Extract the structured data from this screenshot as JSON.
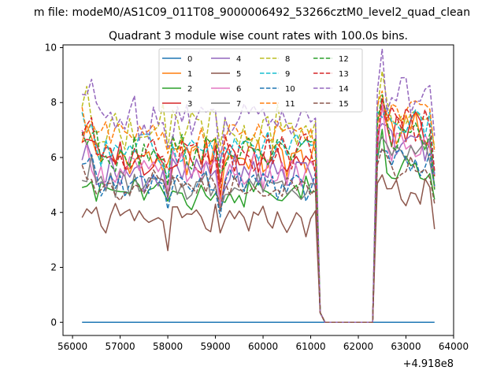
{
  "chart_data": {
    "type": "line",
    "suptitle": "m file: modeM0/AS1C09_011T08_9000006492_53266cztM0_level2_quad_clean",
    "title": "Quadrant 3 module wise count rates with 100.0s bins.",
    "xlabel": "",
    "ylabel": "",
    "x_offset_label": "+4.918e8",
    "xlim": [
      55800,
      64000
    ],
    "ylim": [
      -0.48,
      10.1
    ],
    "x_ticks": [
      56000,
      57000,
      58000,
      59000,
      60000,
      61000,
      62000,
      63000,
      64000
    ],
    "y_ticks": [
      0,
      2,
      4,
      6,
      8,
      10
    ],
    "grid": false,
    "legend": {
      "position": "top-center",
      "ncols": 4
    },
    "segments": [
      {
        "x_start": 56200,
        "x_end": 61100,
        "step": 100
      },
      {
        "x_start": 62300,
        "x_end": 63600,
        "step": 100
      }
    ],
    "zero_span": {
      "x_start": 61300,
      "x_end": 62300
    },
    "transition_points": [
      [
        61200,
        0.35
      ]
    ],
    "series": [
      {
        "name": "0",
        "color": "#1f77b4",
        "dashed": false,
        "level1": 0.0,
        "level2": 0.0,
        "amp": 0.0
      },
      {
        "name": "1",
        "color": "#ff7f0e",
        "dashed": false,
        "level1": 6.0,
        "level2": 7.0,
        "amp": 0.6
      },
      {
        "name": "2",
        "color": "#2ca02c",
        "dashed": false,
        "level1": 4.7,
        "level2": 5.6,
        "amp": 0.5
      },
      {
        "name": "3",
        "color": "#d62728",
        "dashed": false,
        "level1": 6.0,
        "level2": 7.0,
        "amp": 0.6
      },
      {
        "name": "4",
        "color": "#9467bd",
        "dashed": false,
        "level1": 5.4,
        "level2": 6.6,
        "amp": 0.6
      },
      {
        "name": "5",
        "color": "#8c564b",
        "dashed": false,
        "level1": 3.7,
        "level2": 4.6,
        "amp": 0.5
      },
      {
        "name": "6",
        "color": "#e377c2",
        "dashed": false,
        "level1": 5.5,
        "level2": 6.5,
        "amp": 0.6
      },
      {
        "name": "7",
        "color": "#7f7f7f",
        "dashed": false,
        "level1": 5.0,
        "level2": 6.2,
        "amp": 0.5
      },
      {
        "name": "8",
        "color": "#bcbd22",
        "dashed": true,
        "level1": 7.0,
        "level2": 7.6,
        "amp": 0.7
      },
      {
        "name": "9",
        "color": "#17becf",
        "dashed": true,
        "level1": 6.3,
        "level2": 7.2,
        "amp": 0.6
      },
      {
        "name": "10",
        "color": "#1f77b4",
        "dashed": true,
        "level1": 5.0,
        "level2": 5.9,
        "amp": 0.5
      },
      {
        "name": "11",
        "color": "#ff7f0e",
        "dashed": true,
        "level1": 6.7,
        "level2": 7.6,
        "amp": 0.6
      },
      {
        "name": "12",
        "color": "#2ca02c",
        "dashed": true,
        "level1": 6.2,
        "level2": 6.9,
        "amp": 0.6
      },
      {
        "name": "13",
        "color": "#d62728",
        "dashed": true,
        "level1": 6.2,
        "level2": 7.2,
        "amp": 0.6
      },
      {
        "name": "14",
        "color": "#9467bd",
        "dashed": true,
        "level1": 7.5,
        "level2": 8.2,
        "amp": 0.7
      },
      {
        "name": "15",
        "color": "#8c564b",
        "dashed": true,
        "level1": 4.9,
        "level2": 5.6,
        "amp": 0.5
      }
    ]
  }
}
